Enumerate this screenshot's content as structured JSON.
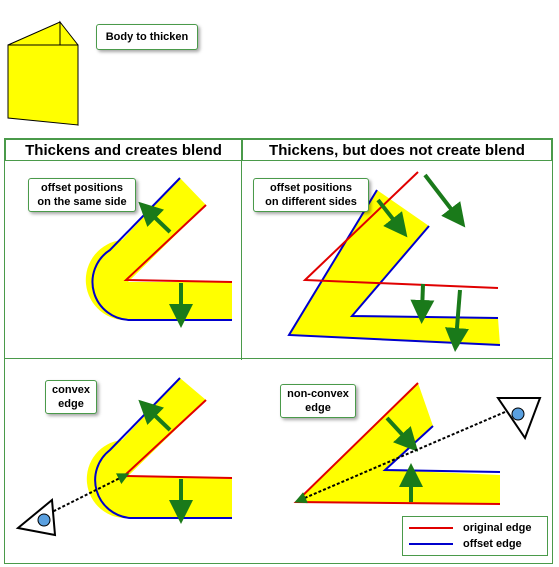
{
  "body_label": "Body to thicken",
  "headers": {
    "left": "Thickens and creates blend",
    "right": "Thickens, but does not create blend"
  },
  "labels": {
    "same_side_line1": "offset positions",
    "same_side_line2": "on the same side",
    "diff_sides_line1": "offset positions",
    "diff_sides_line2": "on different sides",
    "convex_line1": "convex",
    "convex_line2": "edge",
    "nonconvex_line1": "non-convex",
    "nonconvex_line2": "edge"
  },
  "legend": {
    "original": "original edge",
    "offset": "offset edge"
  },
  "colors": {
    "fill": "#ffff00",
    "original_edge": "#e00000",
    "offset_edge": "#0000cc",
    "arrow": "#1a7a1a",
    "border": "#4a9a4a"
  }
}
